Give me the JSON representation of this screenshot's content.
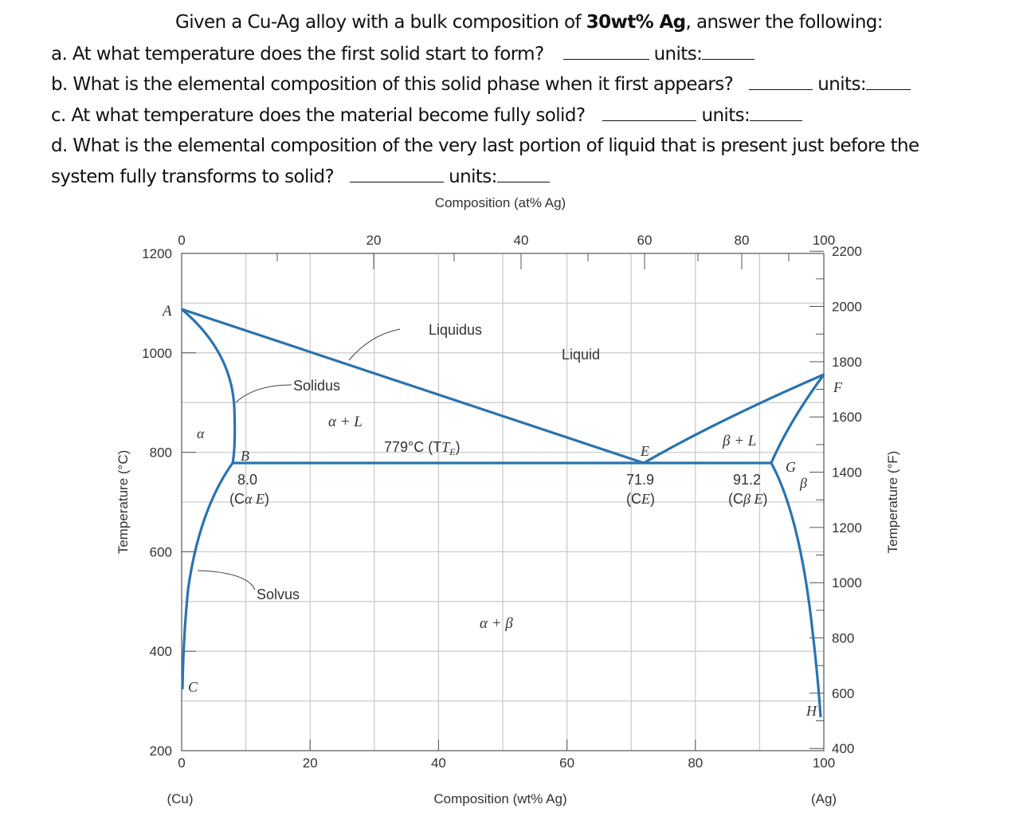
{
  "question": {
    "intro_pre": "Given a Cu-Ag alloy with a bulk composition of ",
    "intro_bold": "30wt% Ag",
    "intro_post": ", answer the following:",
    "a": "a. At what temperature does the first solid start to form?",
    "b": "b. What is the elemental composition of this solid phase when it first appears?",
    "c": "c. At what temperature does the material become fully solid?",
    "d1": "d. What is the elemental composition of the very last portion of liquid that is present just before the",
    "d2": "system fully transforms to solid?",
    "units": "units:"
  },
  "chart_data": {
    "type": "phase-diagram",
    "title": "",
    "top_axis_label": "Composition (at% Ag)",
    "top_ticks": [
      "0",
      "20",
      "40",
      "60",
      "80",
      "100"
    ],
    "bottom_axis_label": "Composition (wt% Ag)",
    "bottom_ticks": [
      "0",
      "20",
      "40",
      "60",
      "80",
      "100"
    ],
    "bottom_end_labels": [
      "(Cu)",
      "(Ag)"
    ],
    "left_axis_label": "Temperature (°C)",
    "left_ticks": [
      "1200",
      "1000",
      "800",
      "600",
      "400",
      "200"
    ],
    "right_axis_label": "Temperature (°F)",
    "right_ticks": [
      "2200",
      "2000",
      "1800",
      "1600",
      "1400",
      "1200",
      "1000",
      "800",
      "600",
      "400"
    ],
    "xlim_wt": [
      0,
      100
    ],
    "ylim_C": [
      200,
      1200
    ],
    "grid": true,
    "line_color": "#2a73b0",
    "points": {
      "A": "A",
      "B": "B",
      "C": "C",
      "E": "E",
      "F": "F",
      "G": "G",
      "H": "H"
    },
    "labels": {
      "liquidus": "Liquidus",
      "solidus": "Solidus",
      "solvus": "Solvus",
      "liquid": "Liquid",
      "alpha": "α",
      "beta": "β",
      "alpha_L": "α + L",
      "beta_L": "β + L",
      "alpha_beta": "α + β",
      "eutectic_T": "779°C (T",
      "eutectic_T_sub": "E",
      "c_alpha_e_val": "8.0",
      "c_alpha_e": "(C",
      "c_e_val": "71.9",
      "c_e": "(C",
      "c_beta_e_val": "91.2",
      "c_beta_e": "(C"
    },
    "eutectic": {
      "temperature_C": 779,
      "C_alphaE_wt": 8.0,
      "C_E_wt": 71.9,
      "C_betaE_wt": 91.2
    },
    "melting_points_C": {
      "Cu": 1085,
      "Ag": 962
    }
  }
}
